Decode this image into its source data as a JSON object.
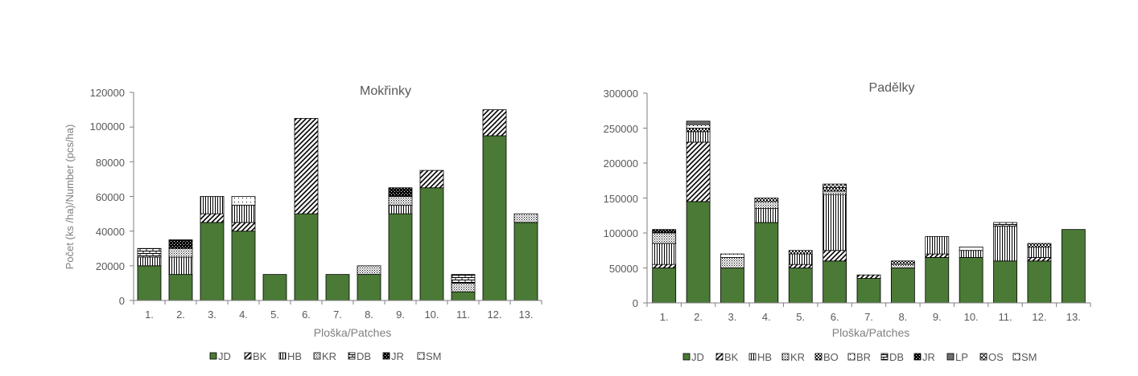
{
  "colors": {
    "jd": "#4a7a35",
    "axis": "#7f7f7f",
    "label": "#7f7f7f",
    "title": "#595959",
    "tick": "#595959",
    "black": "#000000"
  },
  "chart_data": [
    {
      "type": "bar",
      "stacked": true,
      "title": "Mokřinky",
      "xlabel": "Ploška/Patches",
      "ylabel": "Počet (ks /ha)/Number (pcs/ha)",
      "ylim": [
        0,
        120000
      ],
      "yticks": [
        "0",
        "20000",
        "40000",
        "60000",
        "80000",
        "100000",
        "120000"
      ],
      "categories": [
        "1.",
        "2.",
        "3.",
        "4.",
        "5.",
        "6.",
        "7.",
        "8.",
        "9.",
        "10.",
        "11.",
        "12.",
        "13."
      ],
      "legend_position": "bottom",
      "series": [
        {
          "name": "JD",
          "pattern": "solid",
          "values": [
            20000,
            15000,
            45000,
            40000,
            15000,
            50000,
            15000,
            15000,
            50000,
            65000,
            5000,
            95000,
            45000
          ]
        },
        {
          "name": "BK",
          "pattern": "diag",
          "values": [
            0,
            0,
            5000,
            5000,
            0,
            55000,
            0,
            0,
            0,
            10000,
            0,
            15000,
            0
          ]
        },
        {
          "name": "HB",
          "pattern": "vert",
          "values": [
            5000,
            10000,
            10000,
            10000,
            0,
            0,
            0,
            0,
            5000,
            0,
            0,
            0,
            0
          ]
        },
        {
          "name": "KR",
          "pattern": "dots",
          "values": [
            0,
            5000,
            0,
            0,
            0,
            0,
            0,
            5000,
            5000,
            0,
            5000,
            0,
            5000
          ]
        },
        {
          "name": "DB",
          "pattern": "bricks",
          "values": [
            5000,
            0,
            0,
            0,
            0,
            0,
            0,
            0,
            0,
            0,
            5000,
            0,
            0
          ]
        },
        {
          "name": "JR",
          "pattern": "dark",
          "values": [
            0,
            5000,
            0,
            0,
            0,
            0,
            0,
            0,
            5000,
            0,
            0,
            0,
            0
          ]
        },
        {
          "name": "SM",
          "pattern": "sparse",
          "values": [
            0,
            0,
            0,
            5000,
            0,
            0,
            0,
            0,
            0,
            0,
            0,
            0,
            0
          ]
        }
      ]
    },
    {
      "type": "bar",
      "stacked": true,
      "title": "Padělky",
      "xlabel": "Ploška/Patches",
      "ylabel": "",
      "ylim": [
        0,
        300000
      ],
      "yticks": [
        "0",
        "50000",
        "100000",
        "150000",
        "200000",
        "250000",
        "300000"
      ],
      "categories": [
        "1.",
        "2.",
        "3.",
        "4.",
        "5.",
        "6.",
        "7.",
        "8.",
        "9.",
        "10.",
        "11.",
        "12.",
        "13."
      ],
      "legend_position": "bottom",
      "series": [
        {
          "name": "JD",
          "pattern": "solid",
          "values": [
            50000,
            145000,
            50000,
            115000,
            50000,
            60000,
            35000,
            50000,
            65000,
            65000,
            60000,
            60000,
            105000
          ]
        },
        {
          "name": "BK",
          "pattern": "diag",
          "values": [
            5000,
            85000,
            0,
            0,
            5000,
            15000,
            5000,
            0,
            5000,
            0,
            0,
            5000,
            0
          ]
        },
        {
          "name": "HB",
          "pattern": "vert",
          "values": [
            30000,
            15000,
            0,
            20000,
            15000,
            80000,
            0,
            0,
            25000,
            10000,
            50000,
            15000,
            0
          ]
        },
        {
          "name": "KR",
          "pattern": "dots",
          "values": [
            15000,
            0,
            15000,
            10000,
            0,
            5000,
            0,
            5000,
            0,
            0,
            0,
            0,
            0
          ]
        },
        {
          "name": "BO",
          "pattern": "checker",
          "values": [
            0,
            5000,
            0,
            5000,
            5000,
            5000,
            0,
            5000,
            0,
            0,
            0,
            5000,
            0
          ]
        },
        {
          "name": "BR",
          "pattern": "sparse",
          "values": [
            0,
            5000,
            5000,
            0,
            0,
            0,
            0,
            0,
            0,
            5000,
            0,
            0,
            0
          ]
        },
        {
          "name": "DB",
          "pattern": "bricks",
          "values": [
            0,
            0,
            0,
            0,
            0,
            0,
            0,
            0,
            0,
            0,
            5000,
            0,
            0
          ]
        },
        {
          "name": "JR",
          "pattern": "dark",
          "values": [
            5000,
            0,
            0,
            0,
            0,
            0,
            0,
            0,
            0,
            0,
            0,
            0,
            0
          ]
        },
        {
          "name": "LP",
          "pattern": "gray",
          "values": [
            0,
            5000,
            0,
            0,
            0,
            0,
            0,
            0,
            0,
            0,
            0,
            0,
            0
          ]
        },
        {
          "name": "OS",
          "pattern": "cross",
          "values": [
            0,
            0,
            0,
            0,
            0,
            5000,
            0,
            0,
            0,
            0,
            0,
            0,
            0
          ]
        },
        {
          "name": "SM",
          "pattern": "sparse",
          "values": [
            0,
            0,
            0,
            0,
            0,
            0,
            0,
            0,
            0,
            0,
            0,
            0,
            0
          ]
        }
      ]
    }
  ]
}
